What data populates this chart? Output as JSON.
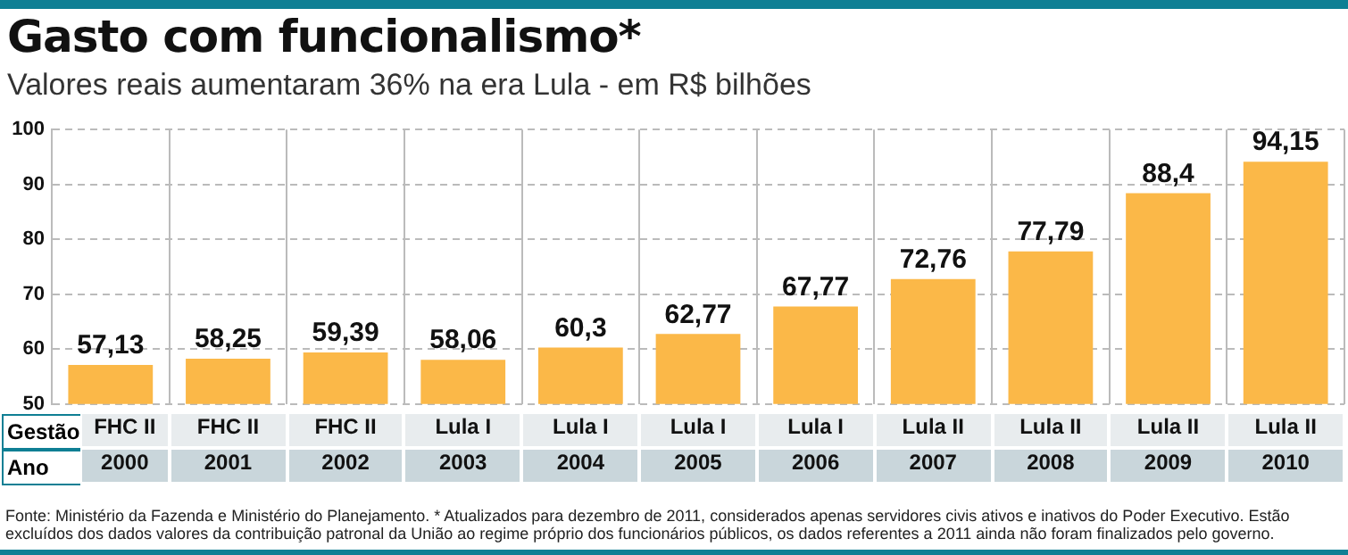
{
  "chart_data": {
    "type": "bar",
    "title": "Gasto com funcionalismo*",
    "subtitle": "Valores reais aumentaram 36% na era Lula  - em R$ bilhões",
    "categories": [
      "2000",
      "2001",
      "2002",
      "2003",
      "2004",
      "2005",
      "2006",
      "2007",
      "2008",
      "2009",
      "2010"
    ],
    "values": [
      57.13,
      58.25,
      59.39,
      58.06,
      60.3,
      62.77,
      67.77,
      72.76,
      77.79,
      88.4,
      94.15
    ],
    "value_labels": [
      "57,13",
      "58,25",
      "59,39",
      "58,06",
      "60,3",
      "62,77",
      "67,77",
      "72,76",
      "77,79",
      "88,4",
      "94,15"
    ],
    "color": "#fbb848",
    "ylim": [
      50,
      100
    ],
    "yticks": [
      50,
      60,
      70,
      80,
      90,
      100
    ],
    "grid": true,
    "annotations": [
      "Gestão",
      "Ano",
      "FHC II",
      "FHC II",
      "FHC II",
      "Lula I",
      "Lula I",
      "Lula I",
      "Lula I",
      "Lula II",
      "Lula II",
      "Lula II",
      "Lula II",
      "Fonte: Ministério da Fazenda e Ministério do Planejamento. * Atualizados para dezembro de 2011, considerados apenas servidores civis ativos e inativos do Poder Executivo. Estão excluídos dos dados valores da contribuição patronal da União ao regime próprio dos funcionários públicos, os dados referentes a 2011 ainda não foram finalizados pelo governo."
    ]
  }
}
